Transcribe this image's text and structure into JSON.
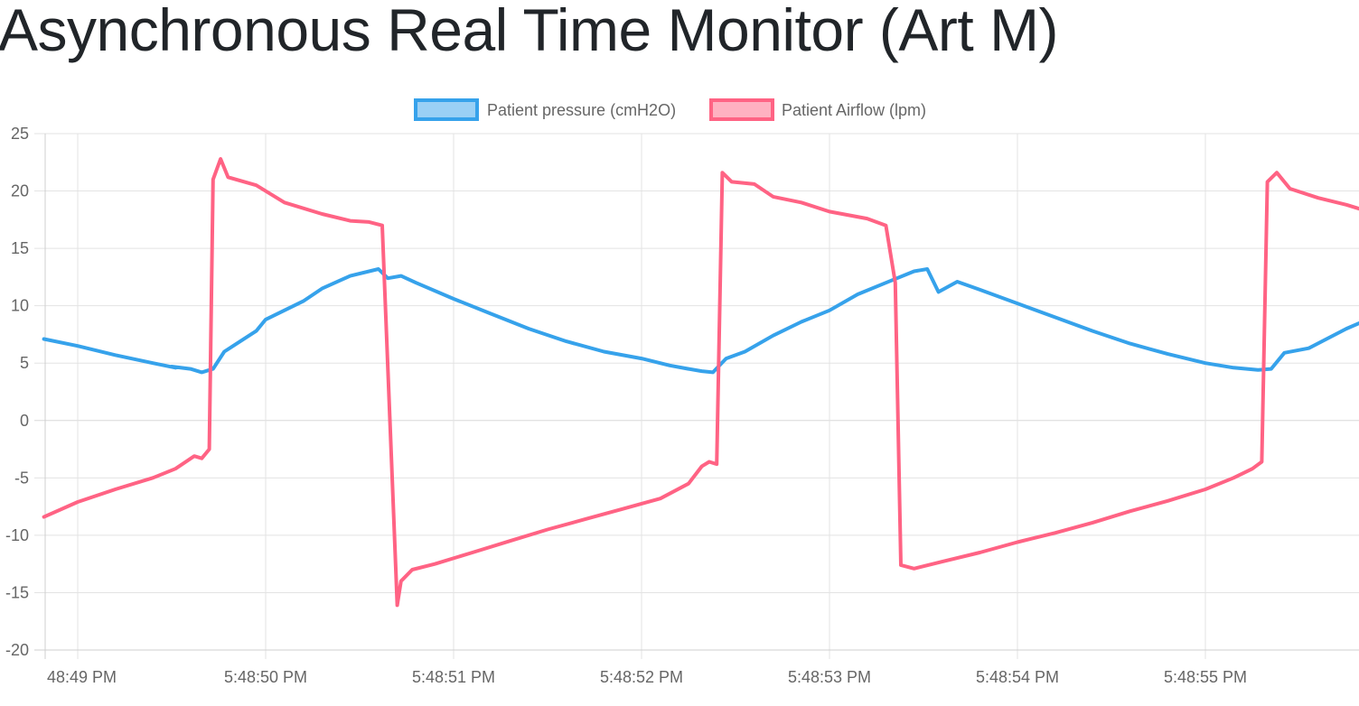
{
  "page": {
    "title": "Asynchronous Real Time Monitor (Art M)"
  },
  "chart_data": {
    "type": "line",
    "grid": true,
    "legend_position": "top-center",
    "ylim": [
      -20,
      25
    ],
    "y_ticks": [
      25,
      20,
      15,
      10,
      5,
      0,
      -5,
      -10,
      -15,
      -20
    ],
    "y_tick_labels": [
      "25",
      "20",
      "15",
      "10",
      "5",
      "0",
      "-5",
      "-10",
      "-15",
      "-20"
    ],
    "xlim": [
      -0.18,
      6.85
    ],
    "x_ticks": [
      0,
      1,
      2,
      3,
      4,
      5,
      6
    ],
    "x_tick_labels": [
      "48:49 PM",
      "5:48:50 PM",
      "5:48:51 PM",
      "5:48:52 PM",
      "5:48:53 PM",
      "5:48:54 PM",
      "5:48:55 PM"
    ],
    "series": [
      {
        "name": "Patient pressure (cmH2O)",
        "color": "#36a2eb",
        "fill": "#9ad0f5",
        "points": [
          [
            -0.18,
            7.1
          ],
          [
            0.0,
            6.5
          ],
          [
            0.2,
            5.7
          ],
          [
            0.4,
            5.0
          ],
          [
            0.52,
            4.6
          ],
          [
            0.5,
            4.7
          ],
          [
            0.6,
            4.5
          ],
          [
            0.66,
            4.2
          ],
          [
            0.72,
            4.5
          ],
          [
            0.78,
            6.0
          ],
          [
            0.95,
            7.8
          ],
          [
            1.0,
            8.8
          ],
          [
            1.2,
            10.4
          ],
          [
            1.3,
            11.5
          ],
          [
            1.45,
            12.6
          ],
          [
            1.6,
            13.2
          ],
          [
            1.65,
            12.4
          ],
          [
            1.72,
            12.6
          ],
          [
            1.8,
            12.0
          ],
          [
            2.0,
            10.6
          ],
          [
            2.2,
            9.3
          ],
          [
            2.4,
            8.0
          ],
          [
            2.6,
            6.9
          ],
          [
            2.8,
            6.0
          ],
          [
            3.0,
            5.4
          ],
          [
            3.15,
            4.8
          ],
          [
            3.25,
            4.5
          ],
          [
            3.32,
            4.3
          ],
          [
            3.38,
            4.2
          ],
          [
            3.45,
            5.4
          ],
          [
            3.55,
            6.0
          ],
          [
            3.7,
            7.4
          ],
          [
            3.85,
            8.6
          ],
          [
            4.0,
            9.6
          ],
          [
            4.15,
            11.0
          ],
          [
            4.3,
            12.0
          ],
          [
            4.45,
            13.0
          ],
          [
            4.52,
            13.2
          ],
          [
            4.58,
            11.2
          ],
          [
            4.68,
            12.1
          ],
          [
            4.8,
            11.4
          ],
          [
            5.0,
            10.2
          ],
          [
            5.2,
            9.0
          ],
          [
            5.4,
            7.8
          ],
          [
            5.6,
            6.7
          ],
          [
            5.8,
            5.8
          ],
          [
            6.0,
            5.0
          ],
          [
            6.15,
            4.6
          ],
          [
            6.28,
            4.4
          ],
          [
            6.35,
            4.5
          ],
          [
            6.42,
            5.9
          ],
          [
            6.55,
            6.3
          ],
          [
            6.75,
            8.0
          ],
          [
            6.85,
            8.7
          ]
        ]
      },
      {
        "name": "Patient Airflow (lpm)",
        "color": "#ff6384",
        "fill": "#ffb1c1",
        "points": [
          [
            -0.18,
            -8.4
          ],
          [
            0.0,
            -7.1
          ],
          [
            0.2,
            -6.0
          ],
          [
            0.4,
            -5.0
          ],
          [
            0.52,
            -4.2
          ],
          [
            0.62,
            -3.1
          ],
          [
            0.66,
            -3.3
          ],
          [
            0.7,
            -2.5
          ],
          [
            0.72,
            21.0
          ],
          [
            0.76,
            22.8
          ],
          [
            0.8,
            21.2
          ],
          [
            0.95,
            20.5
          ],
          [
            1.1,
            19.0
          ],
          [
            1.3,
            18.0
          ],
          [
            1.45,
            17.4
          ],
          [
            1.55,
            17.3
          ],
          [
            1.62,
            17.0
          ],
          [
            1.7,
            -16.1
          ],
          [
            1.72,
            -14.0
          ],
          [
            1.78,
            -13.0
          ],
          [
            1.9,
            -12.5
          ],
          [
            2.1,
            -11.5
          ],
          [
            2.3,
            -10.5
          ],
          [
            2.5,
            -9.5
          ],
          [
            2.7,
            -8.6
          ],
          [
            2.9,
            -7.7
          ],
          [
            3.1,
            -6.8
          ],
          [
            3.25,
            -5.5
          ],
          [
            3.32,
            -4.0
          ],
          [
            3.36,
            -3.6
          ],
          [
            3.4,
            -3.8
          ],
          [
            3.43,
            21.6
          ],
          [
            3.48,
            20.8
          ],
          [
            3.6,
            20.6
          ],
          [
            3.7,
            19.5
          ],
          [
            3.85,
            19.0
          ],
          [
            4.0,
            18.2
          ],
          [
            4.2,
            17.6
          ],
          [
            4.3,
            17.0
          ],
          [
            4.35,
            12.0
          ],
          [
            4.38,
            -12.6
          ],
          [
            4.45,
            -12.9
          ],
          [
            4.6,
            -12.3
          ],
          [
            4.8,
            -11.5
          ],
          [
            5.0,
            -10.6
          ],
          [
            5.2,
            -9.8
          ],
          [
            5.4,
            -8.9
          ],
          [
            5.6,
            -7.9
          ],
          [
            5.8,
            -7.0
          ],
          [
            6.0,
            -6.0
          ],
          [
            6.15,
            -5.0
          ],
          [
            6.25,
            -4.2
          ],
          [
            6.3,
            -3.6
          ],
          [
            6.33,
            20.8
          ],
          [
            6.38,
            21.6
          ],
          [
            6.45,
            20.2
          ],
          [
            6.6,
            19.4
          ],
          [
            6.75,
            18.8
          ],
          [
            6.85,
            18.3
          ]
        ]
      }
    ]
  }
}
